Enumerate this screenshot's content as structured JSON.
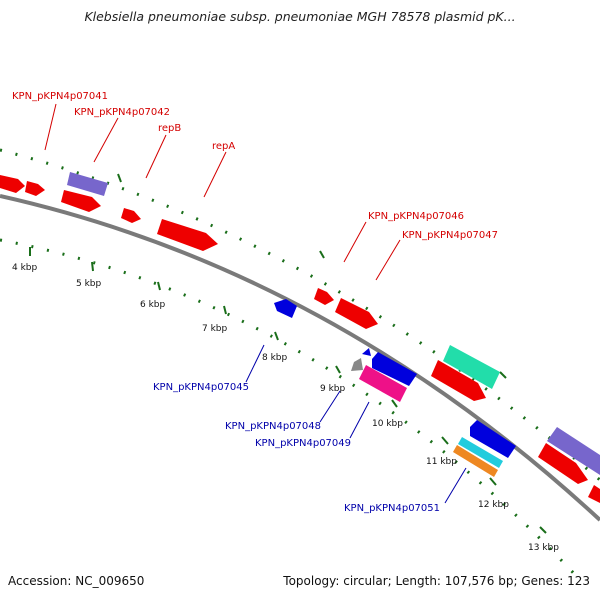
{
  "title": "Klebsiella pneumoniae subsp. pneumoniae MGH 78578 plasmid pK...",
  "footer": {
    "accession": "Accession: NC_009650",
    "summary": "Topology: circular; Length: 107,576 bp; Genes: 123"
  },
  "colors": {
    "forward_label": "#d40000",
    "reverse_label": "#0000aa",
    "backbone": "#7a7a7a",
    "tick": "#1a6e1a"
  },
  "scale_labels": [
    "4 kbp",
    "5 kbp",
    "6 kbp",
    "7 kbp",
    "8 kbp",
    "9 kbp",
    "10 kbp",
    "11 kbp",
    "12 kbp",
    "13 kbp"
  ],
  "gene_labels": {
    "forward": [
      "KPN_pKPN4p07041",
      "KPN_pKPN4p07042",
      "repB",
      "repA",
      "KPN_pKPN4p07046",
      "KPN_pKPN4p07047"
    ],
    "reverse": [
      "KPN_pKPN4p07045",
      "KPN_pKPN4p07048",
      "KPN_pKPN4p07049",
      "KPN_pKPN4p07051"
    ]
  },
  "gene_colors": {
    "red": "#ee0000",
    "blue": "#0000dd",
    "purple": "#7766cc",
    "green": "#22ddaa",
    "magenta": "#ee1188",
    "cyan": "#22ccdd",
    "orange": "#ee8822",
    "grey": "#888888"
  }
}
